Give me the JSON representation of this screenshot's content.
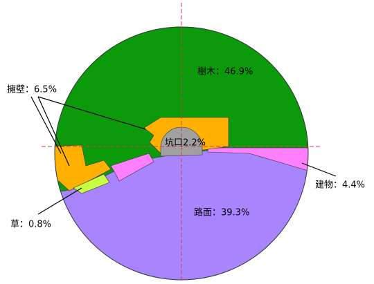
{
  "labels": {
    "trees": "樹木：46.9%",
    "retaining_wall": "擁壁：6.5%",
    "tunnel_portal": "坑口2.2%",
    "building": "建物：4.4%",
    "grass": "草：0.8%",
    "road": "路面：39.3%"
  }
}
